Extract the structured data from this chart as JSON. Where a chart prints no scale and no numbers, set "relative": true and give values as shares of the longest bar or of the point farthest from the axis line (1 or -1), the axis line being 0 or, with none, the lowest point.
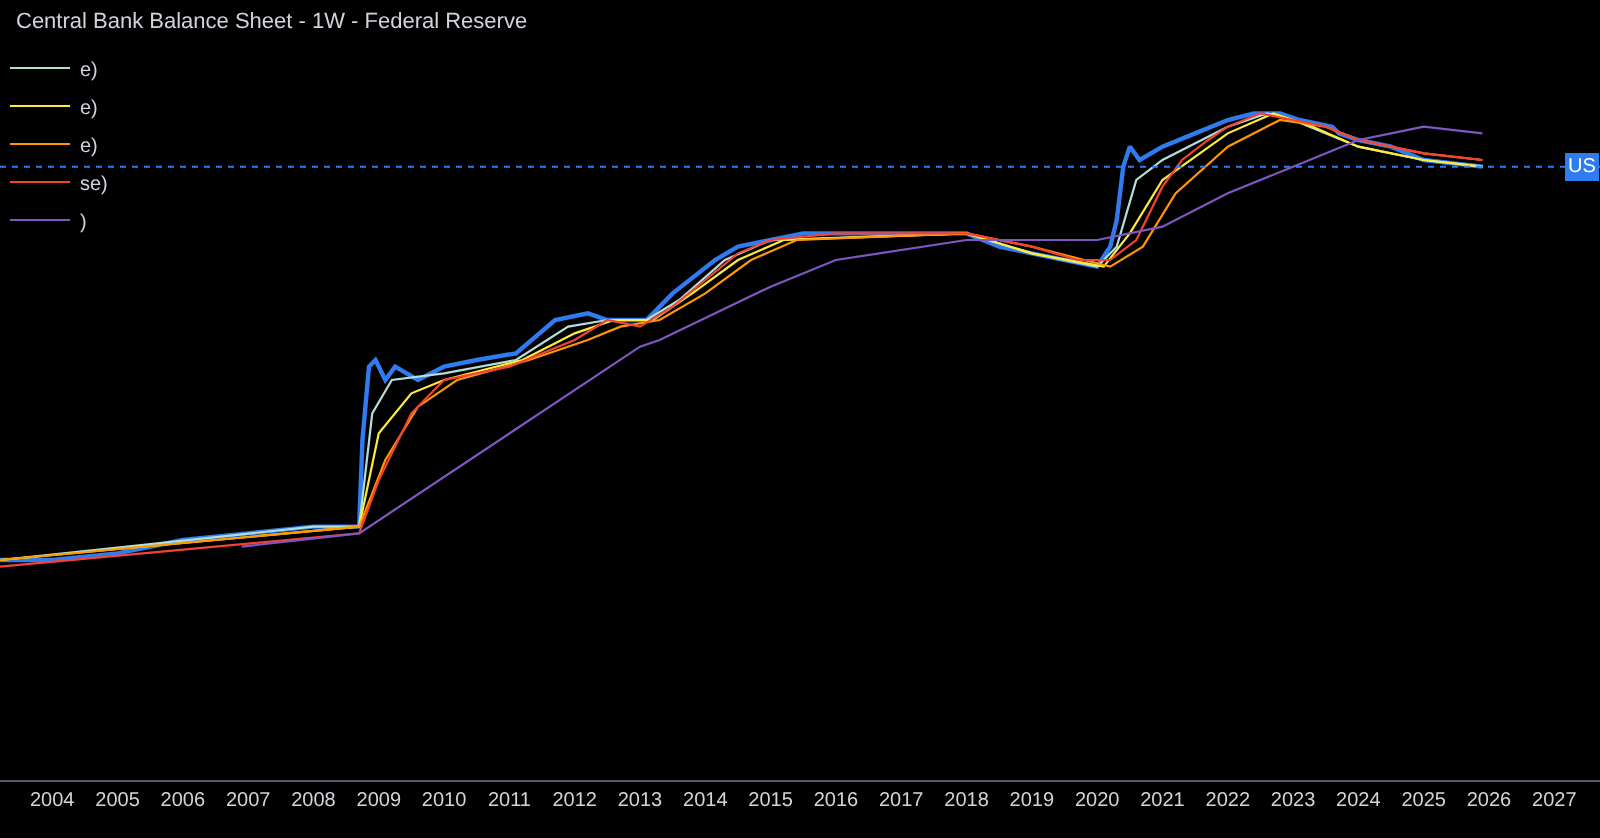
{
  "chart_data": {
    "type": "line",
    "title": "Central Bank Balance Sheet - 1W - Federal Reserve",
    "relative": true,
    "xlim": [
      2003.2,
      2027.7
    ],
    "xticks": [
      2004,
      2005,
      2006,
      2007,
      2008,
      2009,
      2010,
      2011,
      2012,
      2013,
      2014,
      2015,
      2016,
      2017,
      2018,
      2019,
      2020,
      2021,
      2022,
      2023,
      2024,
      2025,
      2026,
      2027
    ],
    "tick_labels": "x",
    "grid": false,
    "legend": "top left",
    "marker": "none",
    "line_style": "solid",
    "ref_lines": [
      {
        "axis": "y",
        "value": 0.92,
        "label": "US",
        "color": "#2f7bf0"
      }
    ],
    "series": [
      {
        "color": "#2f7bf0",
        "x": [
          2003.2,
          2004,
          2005,
          2006,
          2007,
          2008,
          2008.7,
          2008.75,
          2008.85,
          2008.95,
          2009.1,
          2009.25,
          2009.6,
          2010,
          2010.5,
          2011.1,
          2011.7,
          2012.2,
          2012.5,
          2013.1,
          2013.5,
          2014.15,
          2014.5,
          2015,
          2015.5,
          2018,
          2018.5,
          2019,
          2019.5,
          2020,
          2020.2,
          2020.3,
          2020.4,
          2020.5,
          2020.65,
          2021,
          2021.5,
          2022,
          2022.4,
          2022.8,
          2023.1,
          2023.6,
          2023.7,
          2024,
          2024.5,
          2025,
          2025.9
        ],
        "values": [
          0.33,
          0.33,
          0.34,
          0.36,
          0.37,
          0.38,
          0.38,
          0.51,
          0.62,
          0.63,
          0.6,
          0.62,
          0.6,
          0.62,
          0.63,
          0.64,
          0.69,
          0.7,
          0.69,
          0.69,
          0.73,
          0.78,
          0.8,
          0.81,
          0.82,
          0.82,
          0.8,
          0.79,
          0.78,
          0.77,
          0.8,
          0.84,
          0.92,
          0.95,
          0.93,
          0.95,
          0.97,
          0.99,
          1.0,
          1.0,
          0.99,
          0.98,
          0.97,
          0.96,
          0.95,
          0.93,
          0.92
        ]
      },
      {
        "name": "e)",
        "color": "#b2dfdb",
        "x": [
          2003.2,
          2008,
          2008.7,
          2008.9,
          2009.2,
          2010,
          2011.1,
          2011.9,
          2012.5,
          2013.1,
          2013.6,
          2014.3,
          2015,
          2018,
          2019,
          2020,
          2020.3,
          2020.6,
          2021,
          2022,
          2022.6,
          2023,
          2024,
          2025,
          2025.9
        ],
        "values": [
          0.33,
          0.38,
          0.38,
          0.55,
          0.6,
          0.61,
          0.63,
          0.68,
          0.69,
          0.69,
          0.72,
          0.78,
          0.81,
          0.82,
          0.79,
          0.77,
          0.8,
          0.9,
          0.93,
          0.98,
          1.0,
          0.99,
          0.95,
          0.93,
          0.92
        ]
      },
      {
        "name": "e)",
        "color": "#ffeb3b",
        "x": [
          2003.2,
          2008.7,
          2009,
          2009.5,
          2010,
          2011.2,
          2012,
          2012.6,
          2013.2,
          2013.8,
          2014.5,
          2015.2,
          2018,
          2019,
          2020.1,
          2020.5,
          2021,
          2022,
          2022.7,
          2023.3,
          2024,
          2025,
          2025.9
        ],
        "values": [
          0.33,
          0.38,
          0.52,
          0.58,
          0.6,
          0.63,
          0.67,
          0.69,
          0.69,
          0.73,
          0.78,
          0.81,
          0.82,
          0.79,
          0.77,
          0.82,
          0.9,
          0.97,
          1.0,
          0.98,
          0.95,
          0.93,
          0.92
        ]
      },
      {
        "name": "e)",
        "color": "#ff9800",
        "x": [
          2003.2,
          2008.7,
          2009.1,
          2009.6,
          2010.2,
          2011.3,
          2012.2,
          2012.7,
          2013.3,
          2014,
          2014.7,
          2015.4,
          2018,
          2019,
          2020.2,
          2020.7,
          2021.2,
          2022,
          2022.8,
          2023.5,
          2024,
          2025,
          2025.9
        ],
        "values": [
          0.33,
          0.38,
          0.48,
          0.56,
          0.6,
          0.63,
          0.66,
          0.68,
          0.69,
          0.73,
          0.78,
          0.81,
          0.82,
          0.8,
          0.77,
          0.8,
          0.88,
          0.95,
          0.99,
          0.98,
          0.96,
          0.94,
          0.93
        ]
      },
      {
        "name": "se)",
        "color": "#f44336",
        "x": [
          2003.2,
          2008.7,
          2009,
          2009.5,
          2010,
          2011,
          2012,
          2012.5,
          2013,
          2013.5,
          2014,
          2014.5,
          2015,
          2016,
          2018,
          2018.5,
          2019,
          2019.7,
          2020.2,
          2020.6,
          2021,
          2021.3,
          2021.7,
          2022,
          2022.5,
          2023,
          2023.5,
          2024,
          2025,
          2025.9
        ],
        "values": [
          0.32,
          0.37,
          0.45,
          0.55,
          0.6,
          0.62,
          0.66,
          0.69,
          0.68,
          0.71,
          0.75,
          0.79,
          0.81,
          0.82,
          0.82,
          0.81,
          0.8,
          0.78,
          0.78,
          0.81,
          0.89,
          0.93,
          0.96,
          0.98,
          1.0,
          0.99,
          0.98,
          0.96,
          0.94,
          0.93
        ]
      },
      {
        "name": ")",
        "color": "#7e57c2",
        "x": [
          2006.9,
          2008.7,
          2013,
          2013.3,
          2015,
          2016,
          2018,
          2019.5,
          2020,
          2021,
          2022,
          2023,
          2024,
          2024.5,
          2025,
          2025.9
        ],
        "values": [
          0.35,
          0.37,
          0.65,
          0.66,
          0.74,
          0.78,
          0.81,
          0.81,
          0.81,
          0.83,
          0.88,
          0.92,
          0.96,
          0.97,
          0.98,
          0.97
        ]
      }
    ]
  }
}
